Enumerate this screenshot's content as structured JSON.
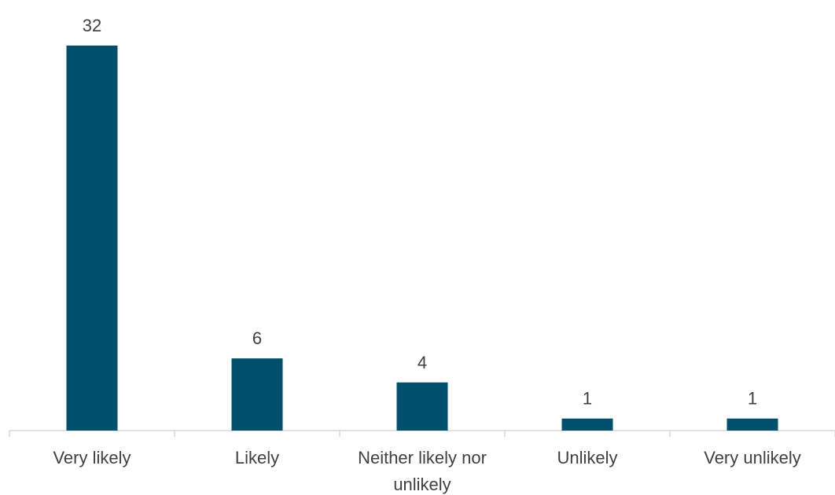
{
  "chart_data": {
    "type": "bar",
    "categories": [
      "Very likely",
      "Likely",
      "Neither likely nor unlikely",
      "Unlikely",
      "Very unlikely"
    ],
    "category_lines": [
      [
        "Very likely"
      ],
      [
        "Likely"
      ],
      [
        "Neither likely nor",
        "unlikely"
      ],
      [
        "Unlikely"
      ],
      [
        "Very unlikely"
      ]
    ],
    "values": [
      32,
      6,
      4,
      1,
      1
    ],
    "data_labels": [
      "32",
      "6",
      "4",
      "1",
      "1"
    ],
    "title": "",
    "xlabel": "",
    "ylabel": "",
    "ylim": [
      0,
      32
    ],
    "grid": false,
    "legend": "none",
    "bar_color": "#004f6b",
    "axis_color": "#d9d9d9",
    "text_color": "#404040"
  }
}
